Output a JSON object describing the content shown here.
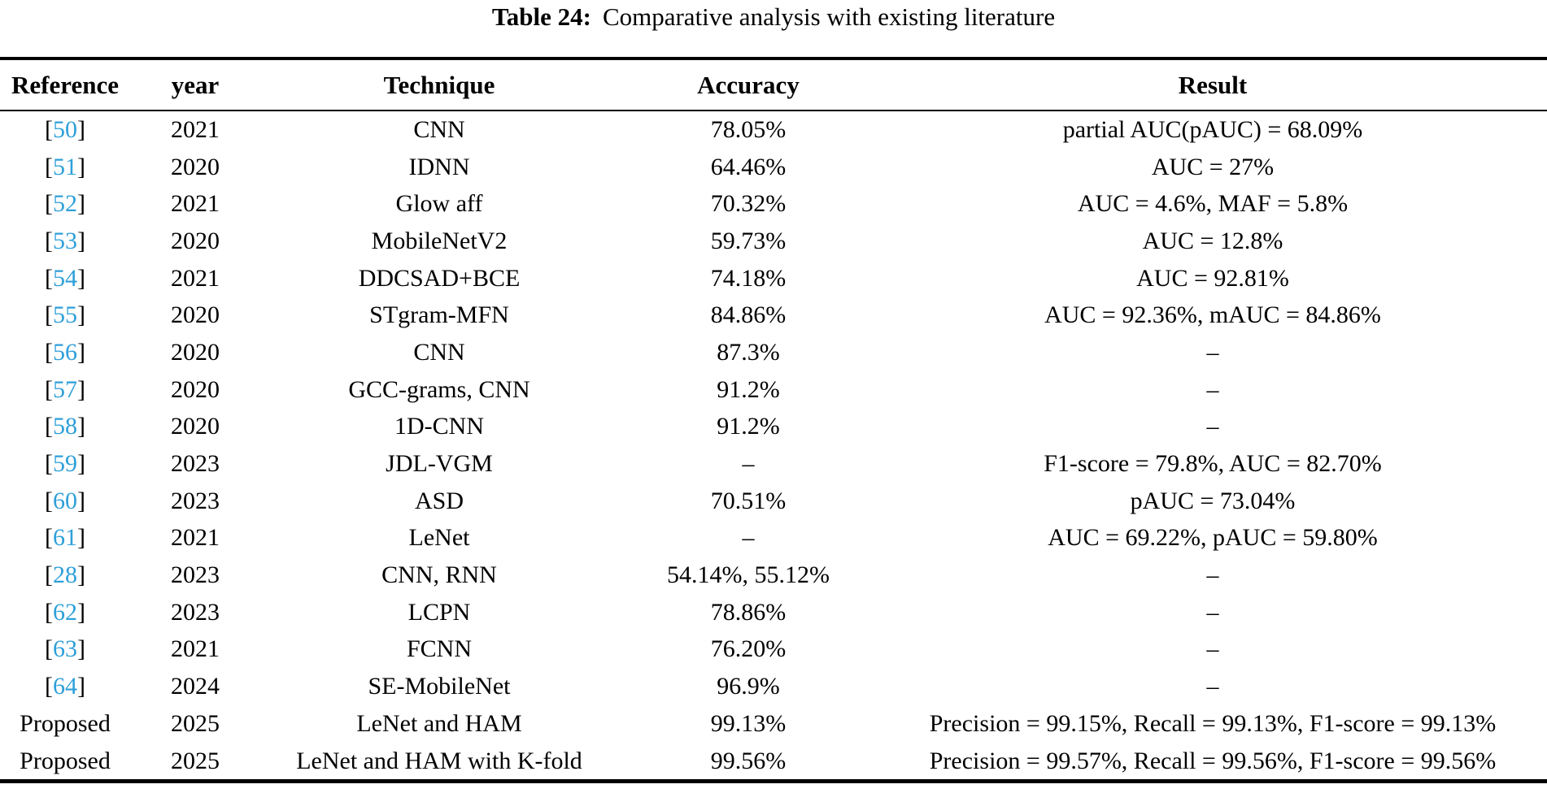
{
  "title": {
    "label": "Table 24:",
    "text": "Comparative analysis with existing literature"
  },
  "colors": {
    "citation_link": "#2e9fd9",
    "text": "#000000",
    "rule": "#000000"
  },
  "table": {
    "columns": [
      "Reference",
      "year",
      "Technique",
      "Accuracy",
      "Result"
    ],
    "rows": [
      {
        "reference": "50",
        "citation": true,
        "year": "2021",
        "technique": "CNN",
        "accuracy": "78.05%",
        "result": "partial AUC(pAUC) = 68.09%"
      },
      {
        "reference": "51",
        "citation": true,
        "year": "2020",
        "technique": "IDNN",
        "accuracy": "64.46%",
        "result": "AUC = 27%"
      },
      {
        "reference": "52",
        "citation": true,
        "year": "2021",
        "technique": "Glow aff",
        "accuracy": "70.32%",
        "result": "AUC = 4.6%, MAF = 5.8%"
      },
      {
        "reference": "53",
        "citation": true,
        "year": "2020",
        "technique": "MobileNetV2",
        "accuracy": "59.73%",
        "result": "AUC = 12.8%"
      },
      {
        "reference": "54",
        "citation": true,
        "year": "2021",
        "technique": "DDCSAD+BCE",
        "accuracy": "74.18%",
        "result": "AUC = 92.81%"
      },
      {
        "reference": "55",
        "citation": true,
        "year": "2020",
        "technique": "STgram-MFN",
        "accuracy": "84.86%",
        "result": "AUC = 92.36%, mAUC = 84.86%"
      },
      {
        "reference": "56",
        "citation": true,
        "year": "2020",
        "technique": "CNN",
        "accuracy": "87.3%",
        "result": "–"
      },
      {
        "reference": "57",
        "citation": true,
        "year": "2020",
        "technique": "GCC-grams, CNN",
        "accuracy": "91.2%",
        "result": "–"
      },
      {
        "reference": "58",
        "citation": true,
        "year": "2020",
        "technique": "1D-CNN",
        "accuracy": "91.2%",
        "result": "–"
      },
      {
        "reference": "59",
        "citation": true,
        "year": "2023",
        "technique": "JDL-VGM",
        "accuracy": "–",
        "result": "F1-score = 79.8%, AUC = 82.70%"
      },
      {
        "reference": "60",
        "citation": true,
        "year": "2023",
        "technique": "ASD",
        "accuracy": "70.51%",
        "result": "pAUC = 73.04%"
      },
      {
        "reference": "61",
        "citation": true,
        "year": "2021",
        "technique": "LeNet",
        "accuracy": "–",
        "result": "AUC = 69.22%, pAUC = 59.80%"
      },
      {
        "reference": "28",
        "citation": true,
        "year": "2023",
        "technique": "CNN, RNN",
        "accuracy": "54.14%, 55.12%",
        "result": "–"
      },
      {
        "reference": "62",
        "citation": true,
        "year": "2023",
        "technique": "LCPN",
        "accuracy": "78.86%",
        "result": "–"
      },
      {
        "reference": "63",
        "citation": true,
        "year": "2021",
        "technique": "FCNN",
        "accuracy": "76.20%",
        "result": "–"
      },
      {
        "reference": "64",
        "citation": true,
        "year": "2024",
        "technique": "SE-MobileNet",
        "accuracy": "96.9%",
        "result": "–"
      },
      {
        "reference": "Proposed",
        "citation": false,
        "year": "2025",
        "technique": "LeNet and HAM",
        "accuracy": "99.13%",
        "result": "Precision = 99.15%, Recall = 99.13%, F1-score = 99.13%"
      },
      {
        "reference": "Proposed",
        "citation": false,
        "year": "2025",
        "technique": "LeNet and HAM with K-fold",
        "accuracy": "99.56%",
        "result": "Precision = 99.57%, Recall = 99.56%, F1-score = 99.56%"
      }
    ]
  }
}
